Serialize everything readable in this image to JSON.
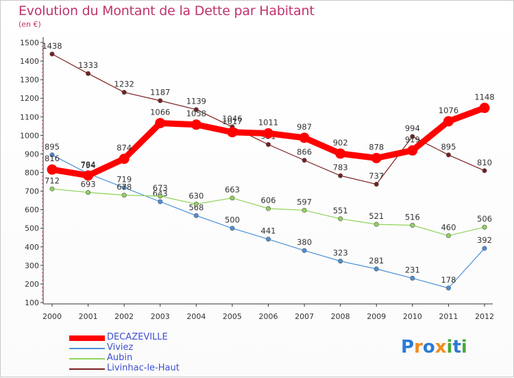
{
  "title": "Evolution du Montant de la Dette par Habitant",
  "unit": "(en €)",
  "logo": {
    "text": "Proxiti",
    "letters": [
      {
        "ch": "P",
        "color": "#2a7bd6"
      },
      {
        "ch": "r",
        "color": "#f28c1e"
      },
      {
        "ch": "o",
        "color": "#2a7bd6"
      },
      {
        "ch": "x",
        "color": "#f28c1e"
      },
      {
        "ch": "i",
        "color": "#4aa83a"
      },
      {
        "ch": "t",
        "color": "#2a7bd6"
      },
      {
        "ch": "i",
        "color": "#4aa83a"
      }
    ]
  },
  "chart_data": {
    "type": "line",
    "x": [
      "2000",
      "2001",
      "2002",
      "2003",
      "2004",
      "2005",
      "2006",
      "2007",
      "2008",
      "2009",
      "2010",
      "2011",
      "2012"
    ],
    "ylim": [
      100,
      1500
    ],
    "yticks": [
      100,
      200,
      300,
      400,
      500,
      600,
      700,
      800,
      900,
      1000,
      1100,
      1200,
      1300,
      1400,
      1500
    ],
    "grid": false,
    "legend": "bottom-left",
    "series": [
      {
        "name": "DECAZEVILLE",
        "color": "#ff0000",
        "width": "thick",
        "values": [
          816,
          784,
          874,
          1066,
          1058,
          1017,
          1011,
          987,
          902,
          878,
          919,
          1076,
          1148
        ],
        "labels": [
          "816",
          "784",
          "874",
          "1066",
          "1058",
          "1017",
          "1011",
          "987",
          "902",
          "878",
          "919",
          "1076",
          "1148"
        ]
      },
      {
        "name": "Viviez",
        "color": "#4a90d9",
        "width": "thin",
        "values": [
          895,
          794,
          719,
          643,
          568,
          500,
          441,
          380,
          323,
          281,
          231,
          178,
          392
        ],
        "labels": [
          "895",
          "794",
          "719",
          "643",
          "568",
          "500",
          "441",
          "380",
          "323",
          "281",
          "231",
          "178",
          "392"
        ]
      },
      {
        "name": "Aubin",
        "color": "#8fd35a",
        "width": "thin",
        "values": [
          712,
          693,
          678,
          673,
          630,
          663,
          606,
          597,
          551,
          521,
          516,
          460,
          506
        ],
        "labels": [
          "712",
          "693",
          "678",
          "673",
          "630",
          "663",
          "606",
          "597",
          "551",
          "521",
          "516",
          "460",
          "506"
        ]
      },
      {
        "name": "Livinhac-le-Haut",
        "color": "#7a1f1f",
        "width": "thin",
        "values": [
          1438,
          1333,
          1232,
          1187,
          1139,
          1046,
          951,
          866,
          783,
          737,
          994,
          895,
          810
        ],
        "labels": [
          "1438",
          "1333",
          "1232",
          "1187",
          "1139",
          "1046",
          "951",
          "866",
          "783",
          "737",
          "994",
          "895",
          "810"
        ]
      }
    ]
  }
}
